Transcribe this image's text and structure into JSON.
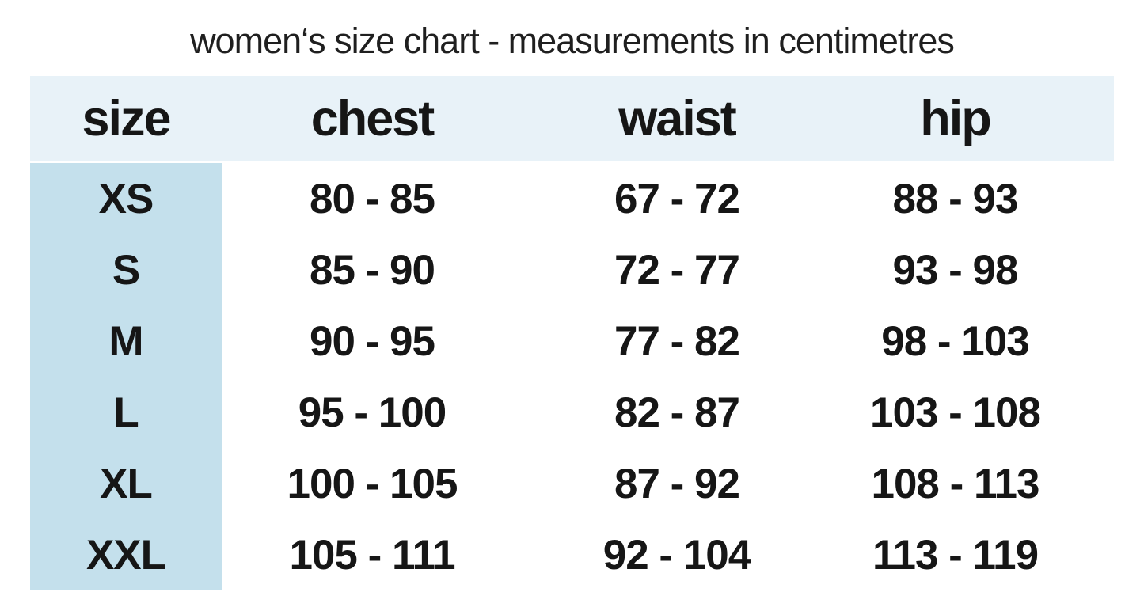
{
  "colors": {
    "header_bg": "#e8f2f8",
    "size_column_bg": "#c4e0ec",
    "text": "#161616",
    "background": "#ffffff"
  },
  "chart_data": {
    "type": "table",
    "title": "women‘s size chart - measurements in centimetres",
    "units": "centimetres",
    "columns": [
      "size",
      "chest",
      "waist",
      "hip"
    ],
    "rows": [
      [
        "XS",
        "80 - 85",
        "67 - 72",
        "88 - 93"
      ],
      [
        "S",
        "85 - 90",
        "72 - 77",
        "93 - 98"
      ],
      [
        "M",
        "90 - 95",
        "77 - 82",
        "98 - 103"
      ],
      [
        "L",
        "95 - 100",
        "82 - 87",
        "103 - 108"
      ],
      [
        "XL",
        "100 - 105",
        "87 - 92",
        "108 - 113"
      ],
      [
        "XXL",
        "105 - 111",
        "92 - 104",
        "113 - 119"
      ]
    ],
    "layout": {
      "legend": "none",
      "grid": "off",
      "header_band": "full-width",
      "highlighted_column": "size"
    }
  }
}
